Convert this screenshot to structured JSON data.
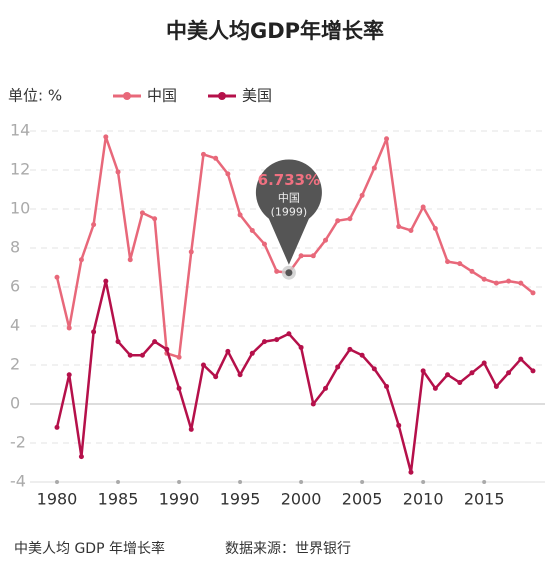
{
  "chart_data": {
    "type": "line",
    "title": "中美人均GDP年增长率",
    "unit_label": "单位: %",
    "footnote": "中美人均 GDP 年增长率",
    "source": "数据来源：世界银行",
    "x": [
      1980,
      1981,
      1982,
      1983,
      1984,
      1985,
      1986,
      1987,
      1988,
      1989,
      1990,
      1991,
      1992,
      1993,
      1994,
      1995,
      1996,
      1997,
      1998,
      1999,
      2000,
      2001,
      2002,
      2003,
      2004,
      2005,
      2006,
      2007,
      2008,
      2009,
      2010,
      2011,
      2012,
      2013,
      2014,
      2015,
      2016,
      2017,
      2018,
      2019
    ],
    "series": [
      {
        "name": "中国",
        "color": "#e8687a",
        "values": [
          6.5,
          3.9,
          7.4,
          9.2,
          13.7,
          11.9,
          7.4,
          9.8,
          9.5,
          2.6,
          2.4,
          7.8,
          12.8,
          12.6,
          11.8,
          9.7,
          8.9,
          8.2,
          6.8,
          6.733,
          7.6,
          7.6,
          8.4,
          9.4,
          9.5,
          10.7,
          12.1,
          13.6,
          9.1,
          8.9,
          10.1,
          9.0,
          7.3,
          7.2,
          6.8,
          6.4,
          6.2,
          6.3,
          6.2,
          5.7
        ]
      },
      {
        "name": "美国",
        "color": "#b5104a",
        "values": [
          -1.2,
          1.5,
          -2.7,
          3.7,
          6.3,
          3.2,
          2.5,
          2.5,
          3.2,
          2.8,
          0.8,
          -1.3,
          2.0,
          1.4,
          2.7,
          1.5,
          2.6,
          3.2,
          3.3,
          3.6,
          2.9,
          0.0,
          0.8,
          1.9,
          2.8,
          2.5,
          1.8,
          0.9,
          -1.1,
          -3.5,
          1.7,
          0.8,
          1.5,
          1.1,
          1.6,
          2.1,
          0.9,
          1.6,
          2.3,
          1.7
        ]
      }
    ],
    "annotation": {
      "value_label": "6.733%",
      "label": "(1999)"
    },
    "xlim": [
      1980,
      2019
    ],
    "xticks": [
      1980,
      1985,
      1990,
      1995,
      2000,
      2005,
      2010,
      2015
    ],
    "ylim": [
      -4,
      14
    ],
    "yticks": [
      -4,
      -2,
      0,
      2,
      4,
      6,
      8,
      10,
      12,
      14
    ],
    "grid": true
  }
}
